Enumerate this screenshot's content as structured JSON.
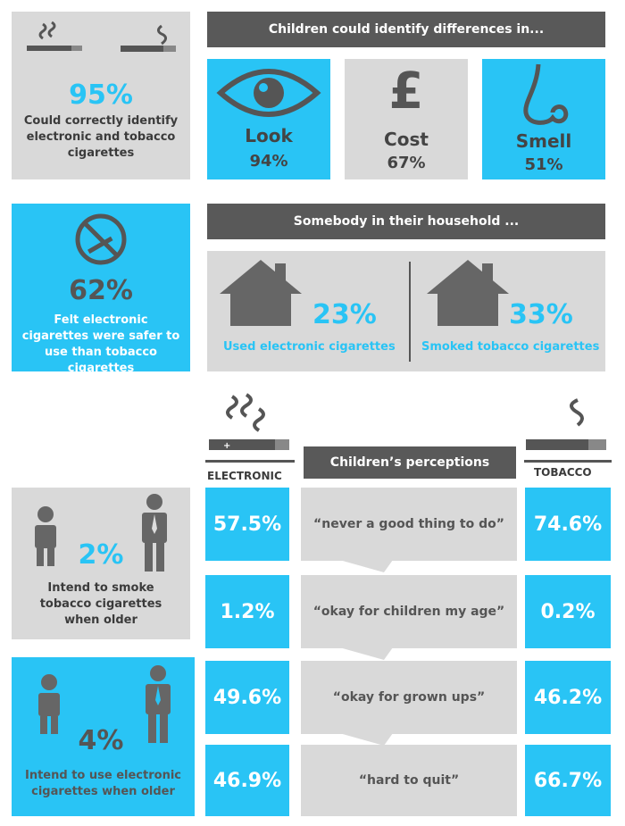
{
  "top": {
    "stat": "95%",
    "caption": "Could  correctly identify electronic and tobacco cigarettes"
  },
  "differences": {
    "header": "Children could identify differences in...",
    "items": [
      {
        "label": "Look",
        "value": "94%"
      },
      {
        "label": "Cost",
        "value": "67%",
        "icon_glyph": "£"
      },
      {
        "label": "Smell",
        "value": "51%"
      }
    ]
  },
  "safer": {
    "stat": "62%",
    "caption": "Felt electronic cigarettes were safer to use than tobacco cigarettes"
  },
  "household": {
    "header": "Somebody in their household ...",
    "items": [
      {
        "value": "23%",
        "label": "Used electronic cigarettes"
      },
      {
        "value": "33%",
        "label": "Smoked tobacco cigarettes"
      }
    ]
  },
  "perceptions": {
    "header": "Children’s perceptions",
    "electronic_label": "ELECTRONIC",
    "tobacco_label": "TOBACCO",
    "rows": [
      {
        "electronic": "57.5%",
        "statement": "“never a good thing to do”",
        "tobacco": "74.6%"
      },
      {
        "electronic": "1.2%",
        "statement": "“okay for children my age”",
        "tobacco": "0.2%"
      },
      {
        "electronic": "49.6%",
        "statement": "“okay for grown ups”",
        "tobacco": "46.2%"
      },
      {
        "electronic": "46.9%",
        "statement": "“hard to quit”",
        "tobacco": "66.7%"
      }
    ]
  },
  "intent": [
    {
      "stat": "2%",
      "caption": "Intend to smoke tobacco cigarettes when older"
    },
    {
      "stat": "4%",
      "caption": "Intend to use electronic cigarettes when older"
    }
  ],
  "colors": {
    "blue": "#29c4f5",
    "gray": "#d9d9d9",
    "dark": "#595959",
    "text": "#3b3b3b"
  }
}
